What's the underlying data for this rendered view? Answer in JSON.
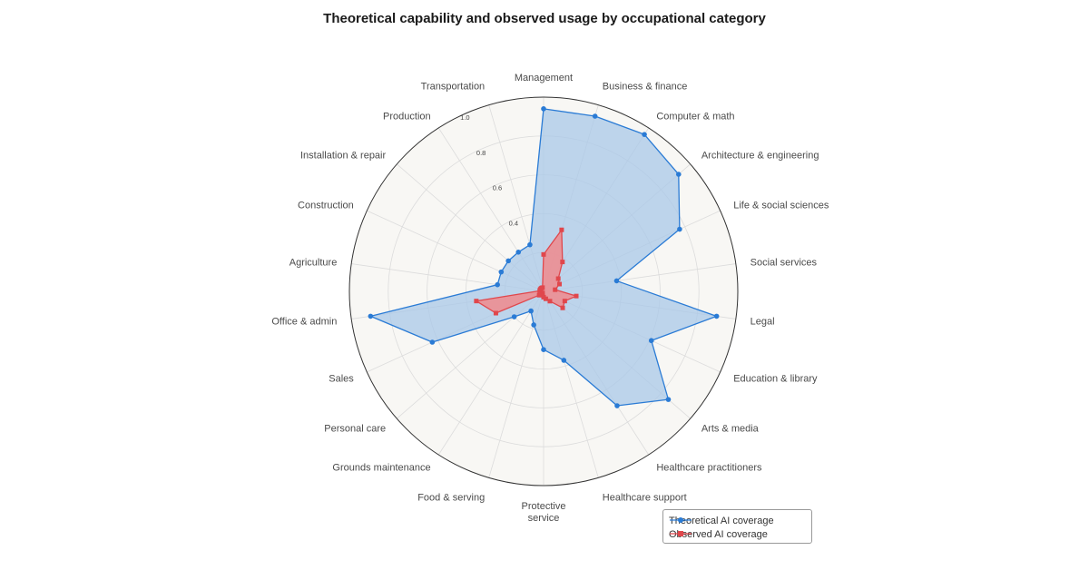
{
  "title": "Theoretical capability and observed usage by occupational category",
  "colors": {
    "theoretical_line": "#2a7bd5",
    "theoretical_fill": "#a9c8e8",
    "observed_line": "#e0474c",
    "observed_fill": "#f08a8d",
    "plot_background": "#f8f7f4",
    "grid": "#dcdcdc"
  },
  "legend": {
    "items": [
      {
        "label": "Theoretical AI coverage",
        "marker": "circle",
        "color": "#2a7bd5"
      },
      {
        "label": "Observed AI coverage",
        "marker": "square",
        "color": "#e0474c"
      }
    ]
  },
  "chart_data": {
    "type": "radar",
    "title": "Theoretical capability and observed usage by occupational category",
    "categories": [
      "Management",
      "Business & finance",
      "Computer & math",
      "Architecture & engineering",
      "Life & social sciences",
      "Social services",
      "Legal",
      "Education & library",
      "Arts & media",
      "Healthcare practitioners",
      "Healthcare support",
      "Protective\nservice",
      "Food & serving",
      "Grounds maintenance",
      "Personal care",
      "Sales",
      "Office & admin",
      "Agriculture",
      "Construction",
      "Installation & repair",
      "Production",
      "Transportation"
    ],
    "radial_ticks": [
      0.4,
      0.6,
      0.8,
      1.0
    ],
    "radial_tick_labels": [
      "0.4",
      "0.6",
      "0.8",
      "1.0"
    ],
    "rlim": [
      0,
      1.0
    ],
    "grid": true,
    "legend_position": "bottom-right",
    "series": [
      {
        "name": "Theoretical AI coverage",
        "marker": "circle",
        "values": [
          0.94,
          0.94,
          0.96,
          0.92,
          0.77,
          0.38,
          0.9,
          0.61,
          0.85,
          0.7,
          0.37,
          0.3,
          0.18,
          0.12,
          0.2,
          0.63,
          0.9,
          0.24,
          0.24,
          0.24,
          0.24,
          0.25
        ]
      },
      {
        "name": "Observed AI coverage",
        "marker": "square",
        "values": [
          0.19,
          0.33,
          0.18,
          0.1,
          0.09,
          0.06,
          0.17,
          0.12,
          0.13,
          0.06,
          0.04,
          0.03,
          0.02,
          0.01,
          0.03,
          0.27,
          0.35,
          0.02,
          0.02,
          0.02,
          0.02,
          0.02
        ]
      }
    ]
  }
}
